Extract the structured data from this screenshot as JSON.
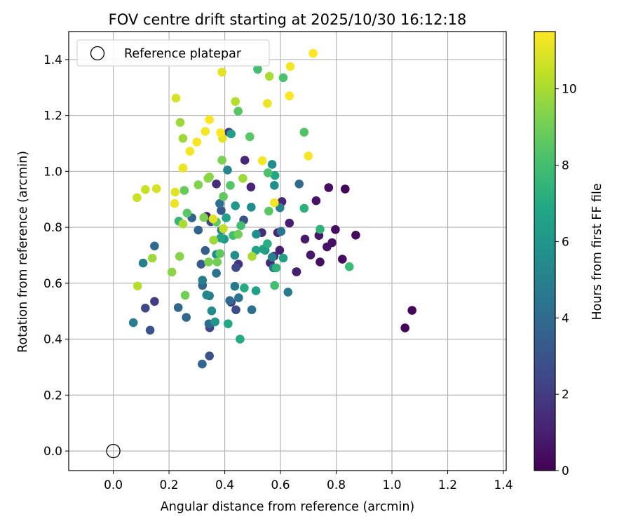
{
  "chart_data": {
    "type": "scatter",
    "title": "FOV centre drift starting at 2025/10/30 16:12:18",
    "xlabel": "Angular distance from reference (arcmin)",
    "ylabel": "Rotation from reference (arcmin)",
    "xlim": [
      -0.16,
      1.41
    ],
    "ylim": [
      -0.07,
      1.5
    ],
    "xticks": [
      0.0,
      0.2,
      0.4,
      0.6,
      0.8,
      1.0,
      1.2,
      1.4
    ],
    "xtick_labels": [
      "0.0",
      "0.2",
      "0.4",
      "0.6",
      "0.8",
      "1.0",
      "1.2",
      "1.4"
    ],
    "yticks": [
      0.0,
      0.2,
      0.4,
      0.6,
      0.8,
      1.0,
      1.2,
      1.4
    ],
    "ytick_labels": [
      "0.0",
      "0.2",
      "0.4",
      "0.6",
      "0.8",
      "1.0",
      "1.2",
      "1.4"
    ],
    "grid": true,
    "colormap": "viridis",
    "colorbar": {
      "label": "Hours from first FF file",
      "ticks": [
        0,
        2,
        4,
        6,
        8,
        10
      ],
      "tick_labels": [
        "0",
        "2",
        "4",
        "6",
        "8",
        "10"
      ],
      "range": [
        0,
        11.5
      ]
    },
    "legend": {
      "position": "top-left",
      "entries": [
        "Reference platepar"
      ]
    },
    "reference": {
      "x": 0.0,
      "y": 0.0,
      "label": "Reference platepar"
    },
    "points": [
      [
        1.047,
        0.44,
        0.1
      ],
      [
        1.072,
        0.503,
        0.2
      ],
      [
        0.87,
        0.772,
        0.3
      ],
      [
        0.832,
        0.937,
        0.2
      ],
      [
        0.822,
        0.686,
        0.3
      ],
      [
        0.797,
        0.792,
        0.4
      ],
      [
        0.785,
        0.745,
        0.5
      ],
      [
        0.773,
        0.942,
        0.4
      ],
      [
        0.767,
        0.73,
        0.6
      ],
      [
        0.742,
        0.676,
        0.5
      ],
      [
        0.738,
        0.771,
        0.7
      ],
      [
        0.728,
        0.895,
        0.6
      ],
      [
        0.708,
        0.701,
        0.8
      ],
      [
        0.688,
        0.758,
        0.9
      ],
      [
        0.657,
        0.641,
        1.0
      ],
      [
        0.658,
        0.641,
        0.7
      ],
      [
        0.632,
        0.815,
        1.0
      ],
      [
        0.605,
        0.892,
        1.2
      ],
      [
        0.597,
        0.718,
        1.0
      ],
      [
        0.59,
        0.781,
        1.1
      ],
      [
        0.577,
        0.697,
        1.5
      ],
      [
        0.563,
        0.673,
        1.3
      ],
      [
        0.533,
        0.781,
        1.4
      ],
      [
        0.494,
        0.944,
        1.2
      ],
      [
        0.472,
        1.04,
        1.3
      ],
      [
        0.449,
        0.668,
        1.6
      ],
      [
        0.415,
        1.14,
        2.0
      ],
      [
        0.37,
        0.955,
        1.5
      ],
      [
        0.423,
        1.134,
        6.5
      ],
      [
        0.44,
        0.656,
        2.5
      ],
      [
        0.468,
        0.826,
        3.0
      ],
      [
        0.387,
        0.86,
        3.2
      ],
      [
        0.423,
        0.532,
        2.2
      ],
      [
        0.44,
        0.505,
        2.6
      ],
      [
        0.35,
        0.82,
        2.5
      ],
      [
        0.335,
        0.839,
        0.8
      ],
      [
        0.346,
        0.441,
        2.4
      ],
      [
        0.345,
        0.34,
        3.0
      ],
      [
        0.319,
        0.311,
        3.7
      ],
      [
        0.315,
        0.668,
        3.3
      ],
      [
        0.305,
        0.79,
        3.6
      ],
      [
        0.262,
        0.478,
        3.8
      ],
      [
        0.233,
        0.513,
        3.8
      ],
      [
        0.148,
        0.535,
        2.0
      ],
      [
        0.115,
        0.511,
        2.5
      ],
      [
        0.132,
        0.432,
        3.0
      ],
      [
        0.107,
        0.672,
        5.0
      ],
      [
        0.148,
        0.733,
        4.0
      ],
      [
        0.072,
        0.459,
        4.8
      ],
      [
        0.282,
        0.834,
        3.6
      ],
      [
        0.33,
        0.717,
        3.4
      ],
      [
        0.32,
        0.592,
        3.8
      ],
      [
        0.32,
        0.611,
        4.8
      ],
      [
        0.335,
        0.558,
        5.2
      ],
      [
        0.345,
        0.555,
        4.8
      ],
      [
        0.343,
        0.455,
        4.0
      ],
      [
        0.353,
        0.501,
        5.5
      ],
      [
        0.365,
        0.462,
        5.9
      ],
      [
        0.37,
        0.636,
        4.4
      ],
      [
        0.37,
        0.703,
        5.7
      ],
      [
        0.382,
        0.885,
        4.3
      ],
      [
        0.388,
        0.79,
        4.9
      ],
      [
        0.398,
        0.758,
        6.0
      ],
      [
        0.41,
        1.005,
        5.2
      ],
      [
        0.412,
        0.455,
        6.8
      ],
      [
        0.418,
        0.538,
        4.0
      ],
      [
        0.436,
        0.589,
        4.7
      ],
      [
        0.436,
        0.7,
        5.5
      ],
      [
        0.438,
        0.877,
        6.1
      ],
      [
        0.45,
        0.548,
        4.5
      ],
      [
        0.455,
        0.4,
        7.0
      ],
      [
        0.47,
        0.583,
        7.0
      ],
      [
        0.495,
        0.872,
        5.5
      ],
      [
        0.497,
        0.505,
        4.3
      ],
      [
        0.513,
        0.775,
        5.7
      ],
      [
        0.512,
        0.573,
        6.5
      ],
      [
        0.538,
        0.722,
        6.5
      ],
      [
        0.545,
        0.718,
        6.1
      ],
      [
        0.553,
        0.741,
        7.2
      ],
      [
        0.57,
        0.693,
        5.0
      ],
      [
        0.57,
        1.025,
        5.5
      ],
      [
        0.575,
        0.655,
        4.5
      ],
      [
        0.578,
        0.95,
        5.6
      ],
      [
        0.58,
        0.985,
        6.8
      ],
      [
        0.585,
        0.655,
        7.4
      ],
      [
        0.598,
        0.87,
        5.1
      ],
      [
        0.602,
        0.785,
        4.5
      ],
      [
        0.61,
        0.69,
        6.5
      ],
      [
        0.627,
        0.568,
        4.8
      ],
      [
        0.667,
        0.955,
        4.0
      ],
      [
        0.685,
        0.868,
        7.3
      ],
      [
        0.685,
        1.14,
        8.3
      ],
      [
        0.742,
        0.793,
        7.4
      ],
      [
        0.847,
        0.659,
        7.8
      ],
      [
        0.579,
        0.592,
        8.0
      ],
      [
        0.558,
        0.858,
        8.5
      ],
      [
        0.555,
        0.995,
        8.2
      ],
      [
        0.518,
        1.365,
        8.0
      ],
      [
        0.512,
        0.718,
        6.6
      ],
      [
        0.49,
        1.124,
        8.5
      ],
      [
        0.465,
        0.975,
        9.8
      ],
      [
        0.458,
        0.806,
        8.0
      ],
      [
        0.448,
        0.775,
        9.0
      ],
      [
        0.448,
        1.215,
        8.5
      ],
      [
        0.438,
        1.25,
        10.2
      ],
      [
        0.43,
        0.771,
        8.0
      ],
      [
        0.42,
        0.95,
        8.4
      ],
      [
        0.405,
        0.834,
        6.6
      ],
      [
        0.39,
        1.04,
        9.2
      ],
      [
        0.395,
        0.91,
        8.7
      ],
      [
        0.385,
        0.762,
        6.8
      ],
      [
        0.383,
        0.706,
        8.6
      ],
      [
        0.373,
        0.676,
        9.0
      ],
      [
        0.37,
        0.819,
        8.6
      ],
      [
        0.36,
        0.754,
        9.8
      ],
      [
        0.342,
        0.676,
        9.2
      ],
      [
        0.345,
        0.98,
        9.5
      ],
      [
        0.34,
        0.975,
        9.5
      ],
      [
        0.325,
        0.835,
        9.2
      ],
      [
        0.305,
        0.952,
        9.3
      ],
      [
        0.265,
        0.851,
        8.5
      ],
      [
        0.258,
        0.557,
        9.0
      ],
      [
        0.255,
        0.932,
        8.8
      ],
      [
        0.25,
        1.118,
        9.8
      ],
      [
        0.235,
        0.822,
        7.6
      ],
      [
        0.238,
        0.696,
        9.4
      ],
      [
        0.24,
        1.175,
        9.8
      ],
      [
        0.21,
        0.64,
        9.5
      ],
      [
        0.14,
        0.69,
        9.8
      ],
      [
        0.087,
        0.59,
        10.2
      ],
      [
        0.085,
        0.906,
        10.6
      ],
      [
        0.115,
        0.935,
        10.5
      ],
      [
        0.155,
        0.938,
        10.8
      ],
      [
        0.22,
        0.885,
        11.2
      ],
      [
        0.222,
        0.926,
        11.0
      ],
      [
        0.225,
        1.262,
        10.8
      ],
      [
        0.25,
        1.012,
        11.2
      ],
      [
        0.25,
        0.812,
        10.0
      ],
      [
        0.275,
        1.072,
        11.3
      ],
      [
        0.3,
        1.105,
        11.4
      ],
      [
        0.33,
        1.143,
        11.3
      ],
      [
        0.345,
        1.185,
        11.5
      ],
      [
        0.358,
        0.83,
        11.0
      ],
      [
        0.385,
        1.138,
        11.5
      ],
      [
        0.392,
        1.118,
        11.0
      ],
      [
        0.39,
        1.355,
        11.0
      ],
      [
        0.395,
        0.795,
        10.4
      ],
      [
        0.498,
        0.696,
        10.0
      ],
      [
        0.535,
        1.038,
        11.3
      ],
      [
        0.553,
        1.243,
        11.2
      ],
      [
        0.56,
        1.34,
        10.0
      ],
      [
        0.578,
        0.888,
        11.3
      ],
      [
        0.61,
        1.335,
        8.2
      ],
      [
        0.632,
        1.27,
        11.5
      ],
      [
        0.635,
        1.375,
        11.3
      ],
      [
        0.7,
        1.055,
        11.4
      ],
      [
        0.717,
        1.422,
        11.5
      ]
    ]
  }
}
